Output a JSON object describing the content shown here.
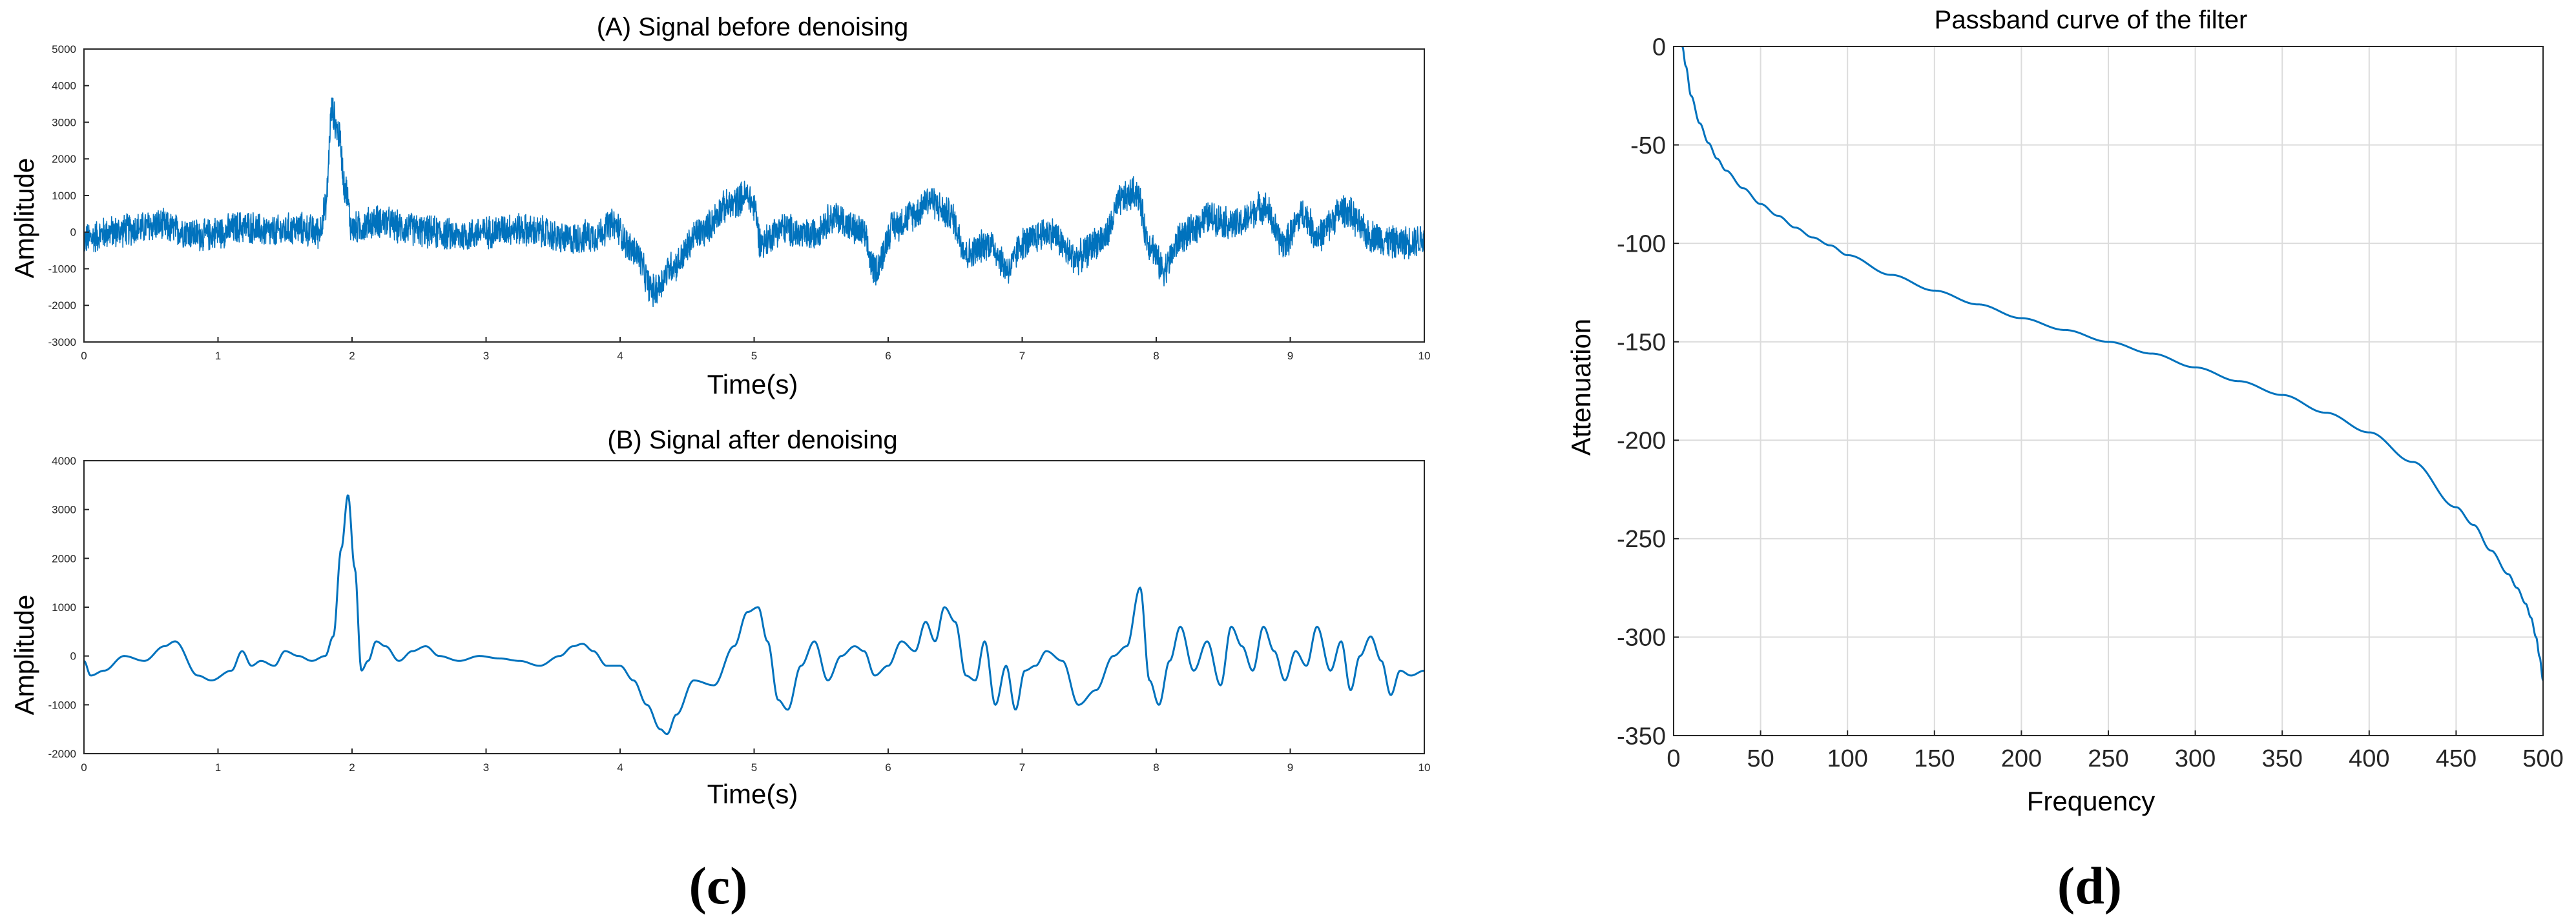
{
  "captions": {
    "left": "(c)",
    "right": "(d)"
  },
  "chart_data": [
    {
      "id": "A",
      "type": "line",
      "title": "(A) Signal before denoising",
      "xlabel": "Time(s)",
      "ylabel": "Amplitude",
      "xlim": [
        0,
        10
      ],
      "ylim": [
        -3000,
        5000
      ],
      "xticks": [
        0,
        1,
        2,
        3,
        4,
        5,
        6,
        7,
        8,
        9,
        10
      ],
      "yticks": [
        -3000,
        -2000,
        -1000,
        0,
        1000,
        2000,
        3000,
        4000,
        5000
      ],
      "grid": false,
      "color": "#0072BD",
      "series": [
        {
          "x": [
            0,
            0.2,
            0.4,
            0.55,
            0.7,
            0.9,
            1.0,
            1.2,
            1.4,
            1.6,
            1.75,
            1.8,
            1.85,
            1.9,
            1.95,
            2.0,
            2.2,
            2.4,
            2.6,
            2.8,
            3.0,
            3.2,
            3.4,
            3.6,
            3.8,
            3.95,
            4.1,
            4.25,
            4.4,
            4.6,
            4.8,
            4.95,
            5.0,
            5.05,
            5.2,
            5.4,
            5.6,
            5.8,
            5.9,
            6.05,
            6.2,
            6.3,
            6.45,
            6.6,
            6.75,
            6.9,
            7.0,
            7.2,
            7.4,
            7.6,
            7.75,
            7.85,
            7.95,
            8.05,
            8.2,
            8.4,
            8.6,
            8.8,
            8.95,
            9.1,
            9.2,
            9.4,
            9.6,
            9.8,
            10.0
          ],
          "y": [
            -200,
            0,
            100,
            200,
            50,
            -100,
            0,
            150,
            0,
            100,
            0,
            600,
            3300,
            2700,
            1200,
            100,
            300,
            100,
            0,
            -100,
            0,
            100,
            0,
            -200,
            -100,
            200,
            -500,
            -1600,
            -900,
            0,
            700,
            1000,
            700,
            -300,
            100,
            -100,
            400,
            0,
            -1000,
            200,
            500,
            900,
            500,
            -600,
            -300,
            -1000,
            -300,
            0,
            -700,
            -200,
            900,
            1100,
            -300,
            -1000,
            -100,
            400,
            200,
            700,
            -300,
            500,
            -100,
            600,
            -100,
            -300,
            -200
          ]
        }
      ],
      "noise_amplitude": 500
    },
    {
      "id": "B",
      "type": "line",
      "title": "(B) Signal after denoising",
      "xlabel": "Time(s)",
      "ylabel": "Amplitude",
      "xlim": [
        0,
        10
      ],
      "ylim": [
        -2000,
        4000
      ],
      "xticks": [
        0,
        1,
        2,
        3,
        4,
        5,
        6,
        7,
        8,
        9,
        10
      ],
      "yticks": [
        -2000,
        -1000,
        0,
        1000,
        2000,
        3000,
        4000
      ],
      "grid": false,
      "color": "#0072BD",
      "series": [
        {
          "x": [
            0,
            0.05,
            0.15,
            0.3,
            0.45,
            0.6,
            0.68,
            0.85,
            0.95,
            1.1,
            1.18,
            1.25,
            1.32,
            1.42,
            1.5,
            1.6,
            1.7,
            1.8,
            1.86,
            1.92,
            1.97,
            2.02,
            2.07,
            2.12,
            2.18,
            2.25,
            2.35,
            2.45,
            2.55,
            2.65,
            2.8,
            2.95,
            3.1,
            3.25,
            3.4,
            3.55,
            3.65,
            3.72,
            3.8,
            3.9,
            4.0,
            4.1,
            4.2,
            4.3,
            4.35,
            4.42,
            4.55,
            4.7,
            4.85,
            4.95,
            5.03,
            5.1,
            5.18,
            5.25,
            5.35,
            5.45,
            5.55,
            5.65,
            5.75,
            5.82,
            5.9,
            6.0,
            6.1,
            6.2,
            6.28,
            6.35,
            6.42,
            6.5,
            6.58,
            6.65,
            6.72,
            6.8,
            6.88,
            6.95,
            7.02,
            7.1,
            7.18,
            7.3,
            7.42,
            7.55,
            7.68,
            7.78,
            7.88,
            7.95,
            8.02,
            8.1,
            8.18,
            8.28,
            8.38,
            8.48,
            8.56,
            8.64,
            8.72,
            8.8,
            8.88,
            8.96,
            9.04,
            9.12,
            9.2,
            9.3,
            9.38,
            9.45,
            9.52,
            9.6,
            9.68,
            9.75,
            9.82,
            9.9,
            10.0
          ],
          "y": [
            -100,
            -400,
            -300,
            0,
            -100,
            200,
            300,
            -400,
            -500,
            -300,
            100,
            -200,
            -100,
            -200,
            100,
            0,
            -100,
            0,
            400,
            2200,
            3300,
            1800,
            -300,
            -100,
            300,
            200,
            -100,
            100,
            200,
            0,
            -100,
            0,
            -50,
            -100,
            -200,
            0,
            200,
            250,
            100,
            -200,
            -200,
            -500,
            -1000,
            -1500,
            -1600,
            -1200,
            -500,
            -600,
            200,
            900,
            1000,
            300,
            -900,
            -1100,
            -200,
            300,
            -500,
            0,
            200,
            100,
            -400,
            -200,
            300,
            100,
            700,
            300,
            1000,
            700,
            -400,
            -500,
            300,
            -1000,
            -200,
            -1100,
            -300,
            -200,
            100,
            -100,
            -1000,
            -700,
            0,
            200,
            1400,
            -500,
            -1000,
            -100,
            600,
            -300,
            300,
            -600,
            600,
            200,
            -300,
            600,
            100,
            -500,
            100,
            -200,
            600,
            -300,
            300,
            -700,
            0,
            400,
            -100,
            -800,
            -300,
            -400,
            -300
          ]
        }
      ]
    },
    {
      "id": "D",
      "type": "line",
      "title": "Passband curve of the filter",
      "xlabel": "Frequency",
      "ylabel": "Attenuation",
      "xlim": [
        0,
        500
      ],
      "ylim": [
        -350,
        0
      ],
      "xticks": [
        0,
        50,
        100,
        150,
        200,
        250,
        300,
        350,
        400,
        450,
        500
      ],
      "yticks": [
        -350,
        -300,
        -250,
        -200,
        -150,
        -100,
        -50,
        0
      ],
      "grid": true,
      "color": "#0072BD",
      "series": [
        {
          "x": [
            5,
            7,
            10,
            15,
            20,
            25,
            30,
            40,
            50,
            60,
            70,
            80,
            90,
            100,
            125,
            150,
            175,
            200,
            225,
            250,
            275,
            300,
            325,
            350,
            375,
            400,
            425,
            450,
            460,
            470,
            480,
            485,
            490,
            493,
            496,
            498,
            500
          ],
          "y": [
            0,
            -10,
            -25,
            -39,
            -49,
            -57,
            -63,
            -72,
            -80,
            -86,
            -92,
            -97,
            -101,
            -106,
            -116,
            -124,
            -131,
            -138,
            -144,
            -150,
            -156,
            -163,
            -170,
            -177,
            -186,
            -196,
            -211,
            -234,
            -243,
            -256,
            -268,
            -275,
            -283,
            -290,
            -300,
            -310,
            -322
          ]
        }
      ]
    }
  ]
}
